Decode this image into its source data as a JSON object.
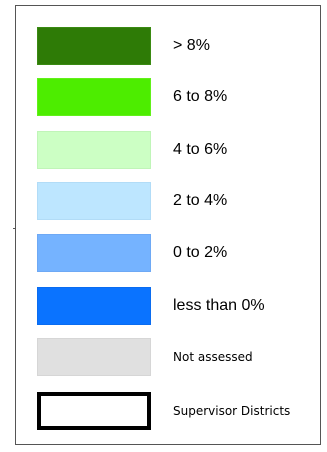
{
  "legend": {
    "items": [
      {
        "label": "> 8%",
        "color": "#2e7b06",
        "border": "#3a8a12",
        "size": "large"
      },
      {
        "label": "6 to 8%",
        "color": "#4ded00",
        "border": "#62f01a",
        "size": "large"
      },
      {
        "label": "4 to 6%",
        "color": "#ccffc4",
        "border": "#c0f5b8",
        "size": "large"
      },
      {
        "label": "2 to 4%",
        "color": "#bde6ff",
        "border": "#b2dcf7",
        "size": "large"
      },
      {
        "label": "0 to 2%",
        "color": "#75b3ff",
        "border": "#6ea9f5",
        "size": "large"
      },
      {
        "label": "less than 0%",
        "color": "#0a73ff",
        "border": "#0a6cf0",
        "size": "large"
      },
      {
        "label": "Not assessed",
        "color": "#e0e0e0",
        "border": "#d6d6d6",
        "size": "small"
      },
      {
        "label": "Supervisor Districts",
        "color": "#ffffff",
        "border": "#000000",
        "size": "small",
        "outline": true
      }
    ]
  }
}
